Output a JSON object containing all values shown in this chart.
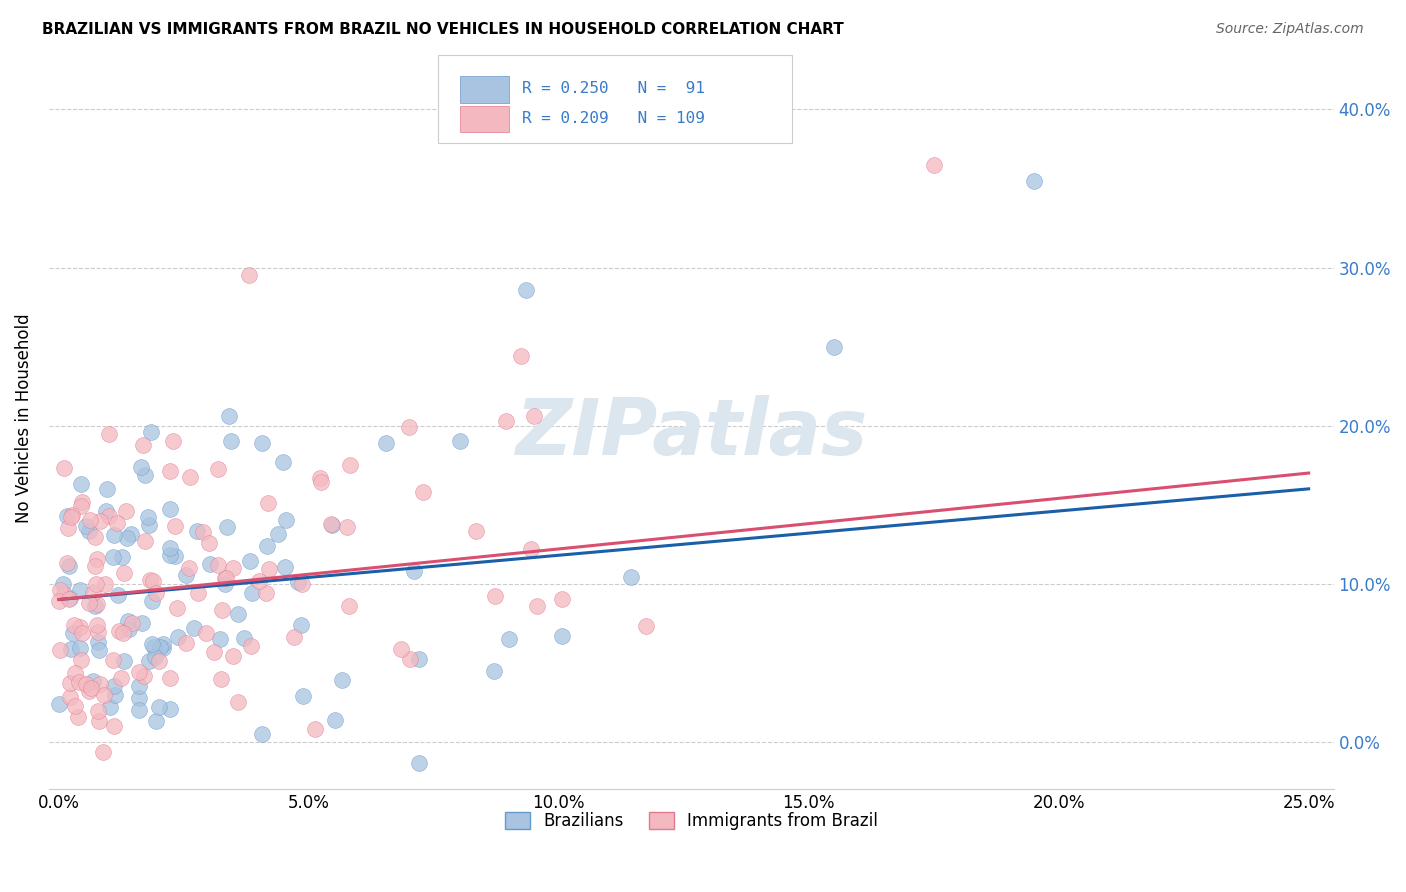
{
  "title": "BRAZILIAN VS IMMIGRANTS FROM BRAZIL NO VEHICLES IN HOUSEHOLD CORRELATION CHART",
  "source": "Source: ZipAtlas.com",
  "ylabel": "No Vehicles in Household",
  "xlim": [
    -0.002,
    0.255
  ],
  "ylim": [
    -0.03,
    0.44
  ],
  "xticks": [
    0.0,
    0.05,
    0.1,
    0.15,
    0.2,
    0.25
  ],
  "yticks": [
    0.0,
    0.1,
    0.2,
    0.3,
    0.4
  ],
  "blue_R": 0.25,
  "blue_N": 91,
  "pink_R": 0.209,
  "pink_N": 109,
  "blue_color": "#a8c4e0",
  "pink_color": "#f4b8c0",
  "blue_edge_color": "#6699cc",
  "pink_edge_color": "#e07a90",
  "blue_line_color": "#1a5fa8",
  "pink_line_color": "#d94f70",
  "legend_label_blue": "Brazilians",
  "legend_label_pink": "Immigrants from Brazil",
  "watermark": "ZIPatlas",
  "watermark_color": "#dce6ef",
  "title_fontsize": 11,
  "source_fontsize": 10,
  "tick_fontsize": 12,
  "ylabel_fontsize": 12,
  "right_tick_color": "#3a7cc9",
  "grid_color": "#cccccc",
  "legend_edge_color": "#cccccc",
  "scatter_size": 130,
  "scatter_alpha": 0.75,
  "line_width": 2.2
}
